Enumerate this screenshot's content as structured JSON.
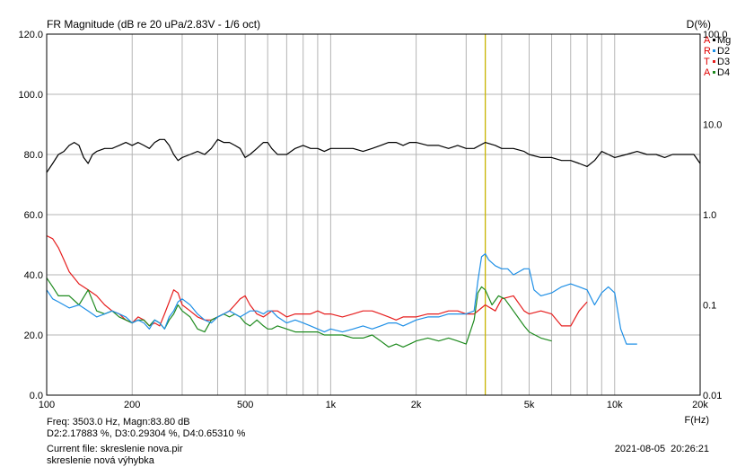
{
  "header": {
    "title": "FR Magnitude (dB re 20 uPa/2.83V - 1/6 oct)",
    "right_unit": "D(%)"
  },
  "legend": [
    {
      "letter": "A",
      "name": "Mg",
      "color": "#000000"
    },
    {
      "letter": "R",
      "name": "D2",
      "color": "#1e8fe6"
    },
    {
      "letter": "T",
      "name": "D3",
      "color": "#e61e1e"
    },
    {
      "letter": "A",
      "name": "D4",
      "color": "#1e8a1e"
    }
  ],
  "footer": {
    "freq_label": "F(Hz)",
    "cursor_line1": "Freq: 3503.0 Hz, Magn:83.80 dB",
    "cursor_line2": "D2:2.17883 %, D3:0.29304 %, D4:0.65310 %",
    "file_line1": "Current file: skreslenie nova.pir",
    "file_line2": "skreslenie nová výhybka",
    "timestamp": "2021-08-05  20:26:21"
  },
  "chart_data": {
    "type": "line",
    "x_scale": "log",
    "xlim": [
      100,
      20000
    ],
    "ylim": [
      0,
      120
    ],
    "y2_scale": "log",
    "y2lim": [
      0.01,
      100
    ],
    "grid": true,
    "x_ticks": [
      "100",
      "200",
      "500",
      "1k",
      "2k",
      "5k",
      "10k",
      "20k"
    ],
    "y_ticks": [
      "0.0",
      "20.0",
      "40.0",
      "60.0",
      "80.0",
      "100.0",
      "120.0"
    ],
    "y2_ticks": [
      "0.01",
      "0.1",
      "1.0",
      "10.0",
      "100.0"
    ],
    "cursor": {
      "x": 3503,
      "color": "#c8b400"
    },
    "series": [
      {
        "name": "Mg",
        "color": "#000000",
        "axis": "left",
        "x": [
          100,
          105,
          110,
          115,
          120,
          125,
          130,
          135,
          140,
          145,
          150,
          160,
          170,
          180,
          190,
          200,
          210,
          220,
          230,
          240,
          250,
          260,
          270,
          280,
          290,
          300,
          320,
          340,
          360,
          380,
          400,
          420,
          440,
          460,
          480,
          500,
          520,
          550,
          580,
          600,
          620,
          650,
          700,
          750,
          800,
          850,
          900,
          950,
          1000,
          1100,
          1200,
          1300,
          1400,
          1500,
          1600,
          1700,
          1800,
          1900,
          2000,
          2200,
          2400,
          2600,
          2800,
          3000,
          3200,
          3500,
          3800,
          4000,
          4400,
          4800,
          5000,
          5500,
          6000,
          6500,
          7000,
          7500,
          8000,
          8500,
          9000,
          9500,
          10000,
          11000,
          12000,
          13000,
          14000,
          15000,
          16000,
          17000,
          18000,
          19000,
          20000
        ],
        "y": [
          74,
          77,
          80,
          81,
          83,
          84,
          83,
          79,
          77,
          80,
          81,
          82,
          82,
          83,
          84,
          83,
          84,
          83,
          82,
          84,
          85,
          85,
          83,
          80,
          78,
          79,
          80,
          81,
          80,
          82,
          85,
          84,
          84,
          83,
          82,
          79,
          80,
          82,
          84,
          84,
          82,
          80,
          80,
          82,
          83,
          82,
          82,
          81,
          82,
          82,
          82,
          81,
          82,
          83,
          84,
          84,
          83,
          84,
          84,
          83,
          83,
          82,
          83,
          82,
          82,
          84,
          83,
          82,
          82,
          81,
          80,
          79,
          79,
          78,
          78,
          77,
          76,
          78,
          81,
          80,
          79,
          80,
          81,
          80,
          80,
          79,
          80,
          80,
          80,
          80,
          77
        ]
      },
      {
        "name": "D2",
        "color": "#1e8fe6",
        "axis": "left",
        "x": [
          100,
          105,
          110,
          120,
          130,
          140,
          150,
          160,
          170,
          180,
          190,
          200,
          210,
          220,
          230,
          240,
          250,
          260,
          270,
          280,
          290,
          300,
          320,
          340,
          360,
          380,
          400,
          420,
          440,
          460,
          480,
          500,
          520,
          550,
          580,
          600,
          620,
          650,
          700,
          750,
          800,
          850,
          900,
          950,
          1000,
          1100,
          1200,
          1300,
          1400,
          1500,
          1600,
          1700,
          1800,
          1900,
          2000,
          2200,
          2400,
          2600,
          2800,
          3000,
          3200,
          3300,
          3400,
          3503,
          3600,
          3800,
          4000,
          4200,
          4400,
          4600,
          4800,
          5000,
          5200,
          5500,
          6000,
          6500,
          7000,
          7500,
          8000,
          8500,
          9000,
          9500,
          10000,
          10500,
          11000,
          12000
        ],
        "y": [
          35,
          32,
          31,
          29,
          30,
          28,
          26,
          27,
          28,
          27,
          26,
          24,
          25,
          24,
          22,
          25,
          24,
          22,
          26,
          28,
          31,
          32,
          30,
          27,
          25,
          24,
          26,
          27,
          28,
          27,
          26,
          27,
          28,
          28,
          27,
          28,
          28,
          26,
          24,
          25,
          24,
          23,
          22,
          21,
          22,
          21,
          22,
          23,
          22,
          23,
          24,
          24,
          23,
          24,
          25,
          26,
          26,
          27,
          27,
          27,
          28,
          38,
          46,
          47,
          45,
          43,
          42,
          42,
          40,
          41,
          42,
          42,
          35,
          33,
          34,
          36,
          37,
          36,
          35,
          30,
          34,
          36,
          34,
          22,
          17,
          17
        ]
      },
      {
        "name": "D3",
        "color": "#e61e1e",
        "axis": "left",
        "x": [
          100,
          105,
          110,
          115,
          120,
          130,
          140,
          150,
          160,
          170,
          180,
          190,
          200,
          210,
          220,
          230,
          240,
          250,
          260,
          270,
          280,
          290,
          300,
          320,
          340,
          360,
          380,
          400,
          420,
          440,
          460,
          480,
          500,
          520,
          550,
          580,
          600,
          620,
          650,
          700,
          750,
          800,
          850,
          900,
          950,
          1000,
          1100,
          1200,
          1300,
          1400,
          1500,
          1600,
          1700,
          1800,
          1900,
          2000,
          2200,
          2400,
          2600,
          2800,
          3000,
          3200,
          3503,
          3800,
          4000,
          4400,
          4800,
          5000,
          5500,
          6000,
          6500,
          7000,
          7500,
          8000
        ],
        "y": [
          53,
          52,
          49,
          45,
          41,
          37,
          35,
          33,
          30,
          28,
          27,
          25,
          24,
          26,
          25,
          23,
          24,
          23,
          27,
          31,
          35,
          34,
          30,
          28,
          26,
          25,
          25,
          26,
          27,
          28,
          30,
          32,
          33,
          30,
          27,
          26,
          27,
          28,
          28,
          26,
          27,
          27,
          27,
          28,
          27,
          27,
          26,
          27,
          28,
          28,
          27,
          26,
          25,
          26,
          26,
          26,
          27,
          27,
          28,
          28,
          27,
          27,
          30,
          28,
          32,
          33,
          28,
          27,
          28,
          27,
          23,
          23,
          28,
          31
        ]
      },
      {
        "name": "D4",
        "color": "#1e8a1e",
        "axis": "left",
        "x": [
          100,
          105,
          110,
          120,
          130,
          140,
          150,
          160,
          170,
          180,
          190,
          200,
          210,
          220,
          230,
          240,
          250,
          260,
          270,
          280,
          290,
          300,
          320,
          340,
          360,
          380,
          400,
          420,
          440,
          460,
          480,
          500,
          520,
          550,
          580,
          600,
          620,
          650,
          700,
          750,
          800,
          850,
          900,
          950,
          1000,
          1100,
          1200,
          1300,
          1400,
          1500,
          1600,
          1700,
          1800,
          1900,
          2000,
          2200,
          2400,
          2600,
          2800,
          3000,
          3200,
          3300,
          3400,
          3503,
          3700,
          3900,
          4100,
          4400,
          4800,
          5000,
          5500,
          6000
        ],
        "y": [
          39,
          36,
          33,
          33,
          30,
          35,
          28,
          27,
          28,
          26,
          25,
          24,
          25,
          25,
          23,
          25,
          24,
          22,
          25,
          27,
          30,
          28,
          26,
          22,
          21,
          25,
          26,
          27,
          26,
          27,
          26,
          24,
          23,
          25,
          23,
          22,
          22,
          23,
          22,
          21,
          21,
          21,
          21,
          20,
          20,
          20,
          19,
          19,
          20,
          18,
          16,
          17,
          16,
          17,
          18,
          19,
          18,
          19,
          18,
          17,
          25,
          34,
          36,
          35,
          30,
          33,
          32,
          28,
          23,
          21,
          19,
          18
        ]
      }
    ]
  }
}
